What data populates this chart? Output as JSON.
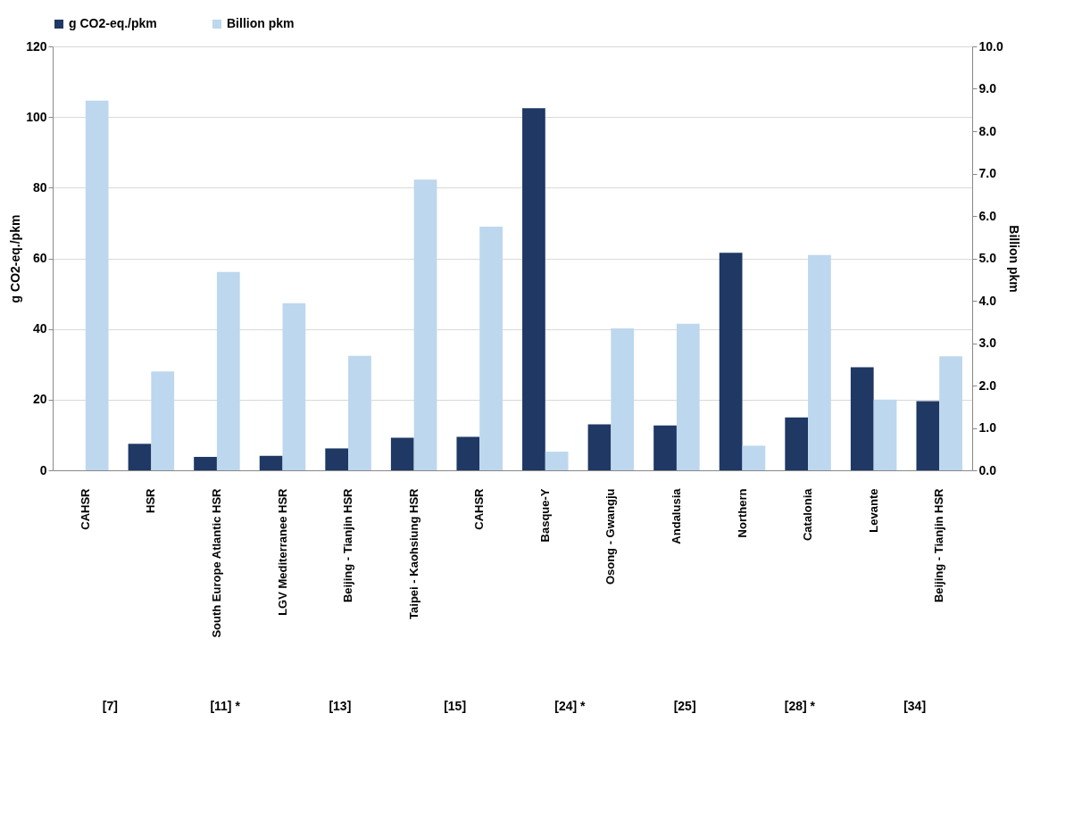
{
  "chart_data": {
    "type": "bar",
    "categories": [
      "CAHSR",
      "HSR",
      "South Europe Atlantic HSR",
      "LGV Mediterranee HSR",
      "Beijing - Tianjin HSR",
      "Taipei - Kaohsiung HSR",
      "CAHSR",
      "Basque-Y",
      "Osong - Gwangju",
      "Andalusia",
      "Northern",
      "Catalonia",
      "Levante",
      "Beijing - Tianjin HSR"
    ],
    "series": [
      {
        "name": "g CO2-eq./pkm",
        "color": "#1f3864",
        "values": [
          null,
          7.5,
          3.8,
          4.1,
          6.2,
          9.2,
          9.5,
          102.5,
          13.0,
          12.7,
          61.6,
          15.0,
          29.2,
          19.6
        ]
      },
      {
        "name": "Billion pkm",
        "color": "#bdd7ee",
        "axis": "y2",
        "values": [
          8.72,
          2.33,
          4.68,
          3.94,
          2.7,
          6.86,
          5.75,
          0.44,
          3.35,
          3.46,
          0.58,
          5.08,
          1.67,
          2.69
        ]
      }
    ],
    "ylabel": "g CO2-eq./pkm",
    "y2label": "Billion pkm",
    "ylim": [
      0,
      120
    ],
    "yticks": [
      0,
      20,
      40,
      60,
      80,
      100,
      120
    ],
    "y2lim": [
      0,
      10
    ],
    "y2ticks": [
      {
        "value": 0,
        "label": "0.0"
      },
      {
        "value": 1,
        "label": "1.0"
      },
      {
        "value": 2,
        "label": "2.0"
      },
      {
        "value": 3,
        "label": "3.0"
      },
      {
        "value": 4,
        "label": "4.0"
      },
      {
        "value": 5,
        "label": "5.0"
      },
      {
        "value": 6,
        "label": "6.0"
      },
      {
        "value": 7,
        "label": "7.0"
      },
      {
        "value": 8,
        "label": "8.0"
      },
      {
        "value": 9,
        "label": "9.0"
      },
      {
        "value": 10,
        "label": "10.0"
      }
    ],
    "grid": "y",
    "legend": "top",
    "annotations": [
      "[7]",
      "[11] *",
      "[13]",
      "[15]",
      "[24] *",
      "[25]",
      "[28] *",
      "[34]"
    ]
  }
}
